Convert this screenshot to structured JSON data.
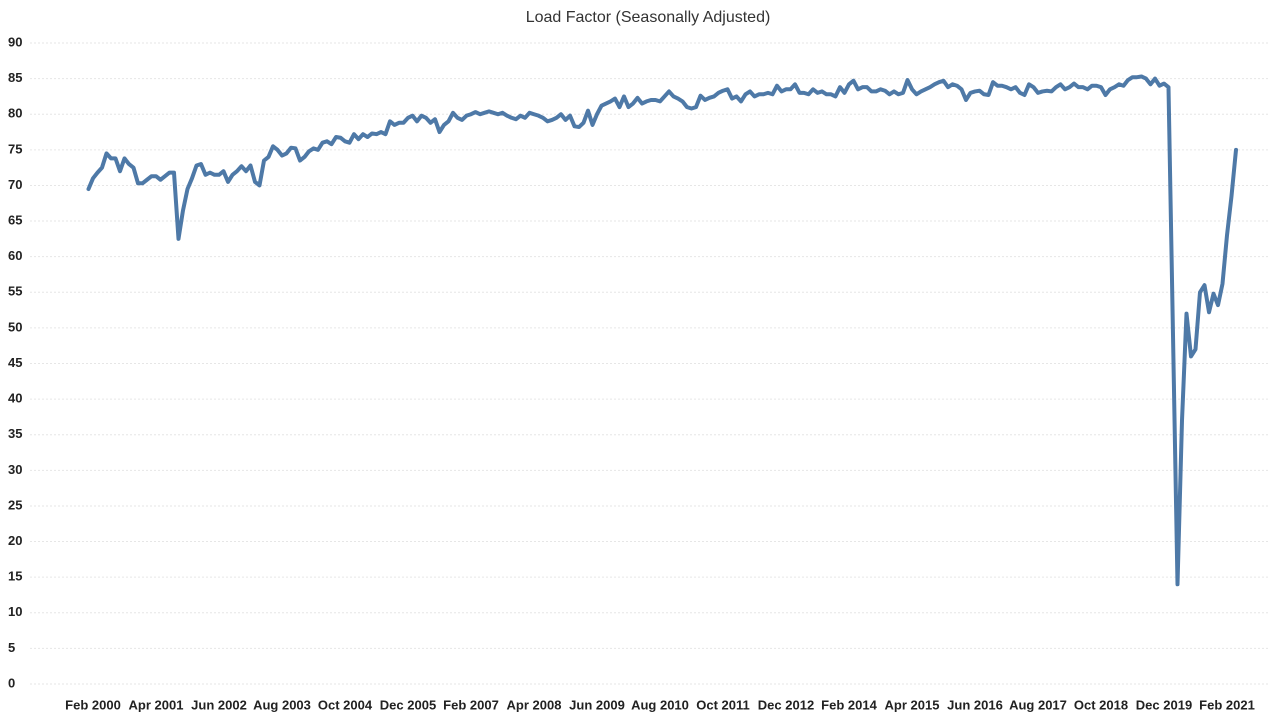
{
  "chart_data": {
    "type": "line",
    "title": "Load Factor (Seasonally Adjusted)",
    "categories": [
      null,
      "Feb 2000",
      null,
      null,
      null,
      null,
      null,
      null,
      null,
      null,
      null,
      null,
      null,
      null,
      null,
      "Apr 2001",
      null,
      null,
      null,
      null,
      null,
      null,
      null,
      null,
      null,
      null,
      null,
      null,
      null,
      "Jun 2002",
      null,
      null,
      null,
      null,
      null,
      null,
      null,
      null,
      null,
      null,
      null,
      null,
      null,
      "Aug 2003",
      null,
      null,
      null,
      null,
      null,
      null,
      null,
      null,
      null,
      null,
      null,
      null,
      null,
      "Oct 2004",
      null,
      null,
      null,
      null,
      null,
      null,
      null,
      null,
      null,
      null,
      null,
      null,
      null,
      "Dec 2005",
      null,
      null,
      null,
      null,
      null,
      null,
      null,
      null,
      null,
      null,
      null,
      null,
      null,
      "Feb 2007",
      null,
      null,
      null,
      null,
      null,
      null,
      null,
      null,
      null,
      null,
      null,
      null,
      null,
      "Apr 2008",
      null,
      null,
      null,
      null,
      null,
      null,
      null,
      null,
      null,
      null,
      null,
      null,
      null,
      "Jun 2009",
      null,
      null,
      null,
      null,
      null,
      null,
      null,
      null,
      null,
      null,
      null,
      null,
      null,
      "Aug 2010",
      null,
      null,
      null,
      null,
      null,
      null,
      null,
      null,
      null,
      null,
      null,
      null,
      null,
      "Oct 2011",
      null,
      null,
      null,
      null,
      null,
      null,
      null,
      null,
      null,
      null,
      null,
      null,
      null,
      "Dec 2012",
      null,
      null,
      null,
      null,
      null,
      null,
      null,
      null,
      null,
      null,
      null,
      null,
      null,
      "Feb 2014",
      null,
      null,
      null,
      null,
      null,
      null,
      null,
      null,
      null,
      null,
      null,
      null,
      null,
      "Apr 2015",
      null,
      null,
      null,
      null,
      null,
      null,
      null,
      null,
      null,
      null,
      null,
      null,
      null,
      "Jun 2016",
      null,
      null,
      null,
      null,
      null,
      null,
      null,
      null,
      null,
      null,
      null,
      null,
      null,
      "Aug 2017",
      null,
      null,
      null,
      null,
      null,
      null,
      null,
      null,
      null,
      null,
      null,
      null,
      null,
      "Oct 2018",
      null,
      null,
      null,
      null,
      null,
      null,
      null,
      null,
      null,
      null,
      null,
      null,
      null,
      "Dec 2019",
      null,
      null,
      null,
      null,
      null,
      null,
      null,
      null,
      null,
      null,
      null,
      null,
      null,
      "Feb 2021",
      null,
      null
    ],
    "values": [
      69.5,
      71,
      71.8,
      72.5,
      74.5,
      73.8,
      73.8,
      72,
      73.8,
      73,
      72.5,
      70.3,
      70.3,
      70.8,
      71.3,
      71.3,
      70.8,
      71.3,
      71.8,
      71.8,
      62.5,
      66.5,
      69.5,
      71,
      72.8,
      73,
      71.5,
      71.8,
      71.5,
      71.5,
      72,
      70.5,
      71.5,
      72,
      72.7,
      72,
      72.8,
      70.5,
      70,
      73.5,
      74,
      75.5,
      75,
      74.2,
      74.5,
      75.3,
      75.2,
      73.5,
      74,
      74.8,
      75.2,
      75,
      76,
      76.2,
      75.8,
      76.8,
      76.7,
      76.2,
      76,
      77.2,
      76.5,
      77.2,
      76.8,
      77.3,
      77.2,
      77.5,
      77.2,
      79,
      78.5,
      78.8,
      78.8,
      79.5,
      79.8,
      79,
      79.8,
      79.5,
      78.8,
      79.3,
      77.5,
      78.5,
      79,
      80.2,
      79.5,
      79.2,
      79.8,
      80,
      80.3,
      80,
      80.2,
      80.4,
      80.2,
      80,
      80.2,
      79.8,
      79.5,
      79.3,
      79.8,
      79.5,
      80.2,
      80,
      79.8,
      79.5,
      79,
      79.2,
      79.5,
      80,
      79.2,
      79.8,
      78.3,
      78.2,
      78.8,
      80.5,
      78.5,
      80,
      81.2,
      81.5,
      81.8,
      82.2,
      81,
      82.5,
      81,
      81.5,
      82.3,
      81.5,
      81.8,
      82,
      82,
      81.8,
      82.5,
      83.2,
      82.5,
      82.2,
      81.8,
      81,
      80.8,
      81,
      82.6,
      82,
      82.3,
      82.5,
      83,
      83.3,
      83.5,
      82.2,
      82.5,
      81.8,
      82.8,
      83.2,
      82.5,
      82.8,
      82.8,
      83,
      82.8,
      84,
      83.2,
      83.5,
      83.5,
      84.2,
      83,
      83,
      82.8,
      83.5,
      83,
      83.2,
      82.8,
      82.8,
      82.5,
      83.8,
      83,
      84.2,
      84.7,
      83.5,
      83.8,
      83.8,
      83.2,
      83.2,
      83.5,
      83.3,
      82.8,
      83.2,
      82.8,
      83,
      84.8,
      83.5,
      82.8,
      83.2,
      83.5,
      83.8,
      84.2,
      84.5,
      84.7,
      83.8,
      84.2,
      84,
      83.5,
      82,
      83,
      83.2,
      83.3,
      82.8,
      82.7,
      84.5,
      84,
      84,
      83.8,
      83.5,
      83.8,
      83,
      82.7,
      84.2,
      83.8,
      83,
      83.2,
      83.3,
      83.2,
      83.8,
      84.2,
      83.5,
      83.8,
      84.3,
      83.8,
      83.8,
      83.5,
      84,
      84,
      83.8,
      82.7,
      83.5,
      83.8,
      84.2,
      84,
      84.8,
      85.2,
      85.2,
      85.3,
      85,
      84.2,
      85,
      84,
      84.3,
      83.8,
      49,
      14,
      37,
      52,
      46,
      47,
      55,
      56,
      52.2,
      54.8,
      53.2,
      56.2,
      63,
      68.5,
      75
    ],
    "color": "#4e79a7",
    "ylim": [
      0,
      90
    ],
    "yticks": [
      0,
      5,
      10,
      15,
      20,
      25,
      30,
      35,
      40,
      45,
      50,
      55,
      60,
      65,
      70,
      75,
      80,
      85,
      90
    ],
    "grid": true
  }
}
